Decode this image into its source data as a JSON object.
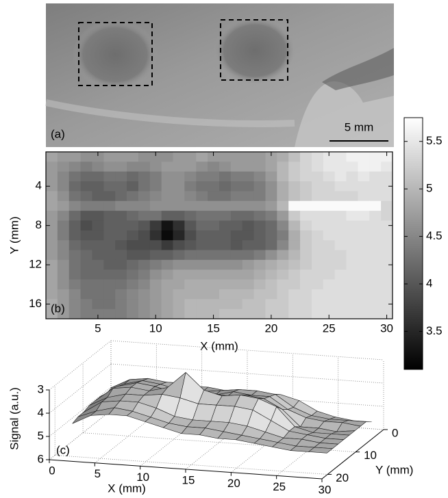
{
  "image": {
    "label": "(a)",
    "scale_bar": "5 mm"
  },
  "chart_data": [
    {
      "type": "heatmap",
      "label": "(b)",
      "x": [
        1,
        2,
        3,
        4,
        5,
        6,
        7,
        8,
        9,
        10,
        11,
        12,
        13,
        14,
        15,
        16,
        17,
        18,
        19,
        20,
        21,
        22,
        23,
        24,
        25,
        26,
        27,
        28,
        29,
        30
      ],
      "y": [
        1,
        2,
        3,
        4,
        5,
        6,
        7,
        8,
        9,
        10,
        11,
        12,
        13,
        14,
        15,
        16,
        17
      ],
      "values": [
        [
          4.8,
          4.7,
          4.7,
          4.6,
          4.6,
          4.7,
          4.7,
          4.7,
          4.6,
          4.6,
          4.6,
          4.7,
          4.7,
          4.8,
          4.7,
          4.7,
          4.7,
          4.7,
          4.7,
          4.8,
          4.9,
          5.1,
          5.3,
          5.4,
          5.5,
          5.5,
          5.6,
          5.6,
          5.6,
          5.6
        ],
        [
          4.7,
          4.6,
          4.5,
          4.4,
          4.5,
          4.6,
          4.6,
          4.5,
          4.5,
          4.6,
          4.7,
          4.7,
          4.7,
          4.6,
          4.5,
          4.6,
          4.7,
          4.7,
          4.7,
          4.8,
          5.0,
          5.2,
          5.3,
          5.4,
          5.5,
          5.5,
          5.5,
          5.6,
          5.6,
          5.5
        ],
        [
          4.7,
          4.5,
          4.3,
          4.2,
          4.2,
          4.3,
          4.3,
          4.2,
          4.3,
          4.4,
          4.6,
          4.6,
          4.5,
          4.4,
          4.4,
          4.3,
          4.4,
          4.4,
          4.5,
          4.7,
          5.0,
          5.2,
          5.3,
          5.3,
          5.4,
          5.5,
          5.4,
          5.5,
          5.4,
          5.4
        ],
        [
          4.7,
          4.5,
          4.2,
          4.1,
          4.1,
          4.2,
          4.2,
          4.1,
          4.3,
          4.4,
          4.6,
          4.6,
          4.4,
          4.3,
          4.3,
          4.2,
          4.3,
          4.3,
          4.4,
          4.6,
          4.9,
          5.1,
          5.2,
          5.3,
          5.3,
          5.4,
          5.4,
          5.4,
          5.4,
          5.4
        ],
        [
          4.8,
          4.6,
          4.3,
          4.2,
          4.1,
          4.1,
          4.2,
          4.3,
          4.4,
          4.5,
          4.6,
          4.6,
          4.5,
          4.4,
          4.3,
          4.3,
          4.4,
          4.4,
          4.4,
          4.6,
          4.9,
          5.1,
          5.2,
          5.3,
          5.3,
          5.3,
          5.3,
          5.4,
          5.4,
          5.4
        ],
        [
          4.8,
          4.7,
          4.5,
          4.4,
          4.4,
          4.4,
          4.5,
          4.5,
          4.5,
          4.6,
          4.6,
          4.6,
          4.6,
          4.6,
          4.6,
          4.6,
          4.6,
          4.6,
          4.6,
          4.7,
          5.0,
          5.7,
          5.7,
          5.7,
          5.7,
          5.7,
          5.7,
          5.7,
          5.7,
          5.3
        ],
        [
          4.7,
          4.5,
          4.2,
          4.0,
          4.0,
          4.1,
          4.1,
          4.2,
          4.3,
          4.3,
          4.1,
          4.1,
          4.2,
          4.3,
          4.3,
          4.3,
          4.2,
          4.2,
          4.3,
          4.4,
          4.7,
          5.2,
          5.4,
          5.4,
          5.4,
          5.4,
          5.5,
          5.5,
          5.4,
          5.3
        ],
        [
          4.7,
          4.4,
          4.1,
          3.9,
          4.0,
          4.1,
          4.1,
          4.1,
          4.0,
          3.7,
          3.3,
          3.6,
          4.0,
          4.2,
          4.2,
          4.1,
          4.1,
          4.0,
          4.1,
          4.2,
          4.5,
          5.0,
          5.3,
          5.4,
          5.4,
          5.4,
          5.4,
          5.4,
          5.4,
          5.4
        ],
        [
          4.7,
          4.4,
          4.1,
          4.0,
          4.0,
          4.1,
          4.1,
          4.0,
          3.9,
          3.6,
          3.2,
          3.5,
          3.9,
          4.1,
          4.1,
          4.1,
          4.0,
          4.0,
          4.1,
          4.2,
          4.4,
          4.9,
          5.2,
          5.3,
          5.4,
          5.4,
          5.4,
          5.4,
          5.4,
          5.4
        ],
        [
          4.7,
          4.5,
          4.2,
          4.1,
          4.1,
          4.1,
          4.0,
          3.9,
          3.9,
          3.9,
          3.7,
          3.9,
          4.0,
          4.1,
          4.1,
          4.1,
          4.0,
          4.1,
          4.1,
          4.2,
          4.5,
          4.9,
          5.2,
          5.3,
          5.3,
          5.4,
          5.4,
          5.4,
          5.4,
          5.4
        ],
        [
          4.7,
          4.5,
          4.3,
          4.2,
          4.1,
          4.1,
          4.1,
          4.0,
          4.0,
          4.1,
          4.1,
          4.2,
          4.3,
          4.3,
          4.3,
          4.3,
          4.3,
          4.3,
          4.4,
          4.6,
          4.8,
          5.0,
          5.2,
          5.3,
          5.3,
          5.3,
          5.4,
          5.4,
          5.4,
          5.4
        ],
        [
          4.8,
          4.6,
          4.3,
          4.2,
          4.2,
          4.1,
          4.1,
          4.2,
          4.3,
          4.4,
          4.5,
          4.6,
          4.6,
          4.6,
          4.6,
          4.6,
          4.6,
          4.7,
          4.8,
          4.9,
          5.0,
          5.1,
          5.2,
          5.3,
          5.3,
          5.3,
          5.4,
          5.4,
          5.4,
          5.4
        ],
        [
          4.8,
          4.6,
          4.3,
          4.2,
          4.2,
          4.2,
          4.2,
          4.3,
          4.4,
          4.6,
          4.7,
          4.8,
          4.8,
          4.8,
          4.8,
          4.8,
          4.8,
          4.8,
          4.9,
          5.0,
          5.1,
          5.2,
          5.3,
          5.3,
          5.3,
          5.4,
          5.4,
          5.4,
          5.4,
          5.4
        ],
        [
          4.8,
          4.6,
          4.4,
          4.3,
          4.3,
          4.3,
          4.3,
          4.4,
          4.5,
          4.7,
          4.8,
          4.8,
          4.9,
          4.9,
          4.9,
          4.9,
          4.9,
          4.9,
          5.0,
          5.1,
          5.2,
          5.2,
          5.3,
          5.3,
          5.4,
          5.4,
          5.4,
          5.4,
          5.4,
          5.4
        ],
        [
          4.8,
          4.7,
          4.5,
          4.3,
          4.3,
          4.3,
          4.4,
          4.5,
          4.6,
          4.7,
          4.8,
          4.9,
          4.9,
          4.9,
          4.9,
          5.0,
          5.0,
          5.0,
          5.1,
          5.1,
          5.2,
          5.3,
          5.3,
          5.4,
          5.4,
          5.4,
          5.4,
          5.4,
          5.4,
          5.4
        ],
        [
          4.9,
          4.7,
          4.5,
          4.4,
          4.3,
          4.3,
          4.4,
          4.5,
          4.6,
          4.7,
          4.8,
          4.9,
          5.0,
          5.0,
          5.0,
          5.0,
          5.0,
          5.1,
          5.1,
          5.2,
          5.2,
          5.3,
          5.3,
          5.4,
          5.4,
          5.4,
          5.4,
          5.4,
          5.4,
          5.4
        ],
        [
          4.9,
          4.7,
          4.5,
          4.4,
          4.4,
          4.4,
          4.4,
          4.5,
          4.6,
          4.7,
          4.8,
          4.9,
          5.0,
          5.0,
          5.0,
          5.1,
          5.1,
          5.1,
          5.1,
          5.2,
          5.2,
          5.3,
          5.3,
          5.4,
          5.4,
          5.4,
          5.4,
          5.4,
          5.4,
          5.4
        ]
      ],
      "xlim": [
        0.5,
        30.5
      ],
      "ylim": [
        17.5,
        0.5
      ],
      "xticks": [
        5,
        10,
        15,
        20,
        25,
        30
      ],
      "yticks": [
        4,
        8,
        12,
        16
      ],
      "xlabel": "X (mm)",
      "ylabel": "Y (mm)",
      "colormap": "gray",
      "clim": [
        3.1,
        5.75
      ],
      "cticks": [
        3.5,
        4,
        4.5,
        5,
        5.5
      ]
    },
    {
      "type": "surface",
      "label": "(c)",
      "x": [
        1,
        3,
        5,
        7,
        9,
        11,
        13,
        15,
        17,
        19,
        21,
        23,
        25,
        27,
        29
      ],
      "y": [
        1,
        3,
        5,
        7,
        9,
        11,
        13,
        15,
        17
      ],
      "values": [
        [
          4.8,
          4.7,
          4.6,
          4.7,
          4.6,
          4.6,
          4.7,
          4.7,
          4.7,
          4.7,
          4.9,
          5.3,
          5.5,
          5.6,
          5.6
        ],
        [
          4.7,
          4.3,
          4.2,
          4.3,
          4.3,
          4.6,
          4.5,
          4.4,
          4.4,
          4.5,
          5.0,
          5.3,
          5.4,
          5.4,
          5.4
        ],
        [
          4.8,
          4.3,
          4.1,
          4.2,
          4.4,
          4.6,
          4.5,
          4.3,
          4.4,
          4.4,
          4.9,
          5.2,
          5.3,
          5.3,
          5.4
        ],
        [
          4.7,
          4.2,
          4.0,
          4.1,
          4.3,
          4.1,
          4.2,
          4.3,
          4.2,
          4.3,
          4.7,
          5.4,
          5.4,
          5.5,
          5.4
        ],
        [
          4.7,
          4.1,
          4.0,
          4.1,
          3.9,
          3.2,
          3.9,
          4.1,
          4.0,
          4.1,
          4.4,
          5.2,
          5.4,
          5.4,
          5.4
        ],
        [
          4.7,
          4.3,
          4.1,
          4.1,
          4.0,
          4.1,
          4.3,
          4.3,
          4.3,
          4.4,
          4.8,
          5.2,
          5.3,
          5.4,
          5.4
        ],
        [
          4.8,
          4.3,
          4.2,
          4.2,
          4.4,
          4.7,
          4.8,
          4.8,
          4.8,
          4.9,
          5.1,
          5.3,
          5.3,
          5.4,
          5.4
        ],
        [
          4.8,
          4.5,
          4.3,
          4.4,
          4.6,
          4.8,
          4.9,
          4.9,
          5.0,
          5.1,
          5.2,
          5.3,
          5.4,
          5.4,
          5.4
        ],
        [
          4.9,
          4.5,
          4.4,
          4.4,
          4.6,
          4.8,
          5.0,
          5.0,
          5.1,
          5.1,
          5.2,
          5.3,
          5.4,
          5.4,
          5.4
        ]
      ],
      "xlim": [
        0,
        30
      ],
      "ylim": [
        0,
        22
      ],
      "zlim": [
        6,
        3
      ],
      "xticks": [
        0,
        5,
        10,
        15,
        20,
        25,
        30
      ],
      "yticks": [
        0,
        10,
        20
      ],
      "zticks": [
        3,
        4,
        5,
        6
      ],
      "xlabel": "X (mm)",
      "ylabel": "Y (mm)",
      "zlabel": "Signal (a.u.)",
      "grid": true
    }
  ]
}
